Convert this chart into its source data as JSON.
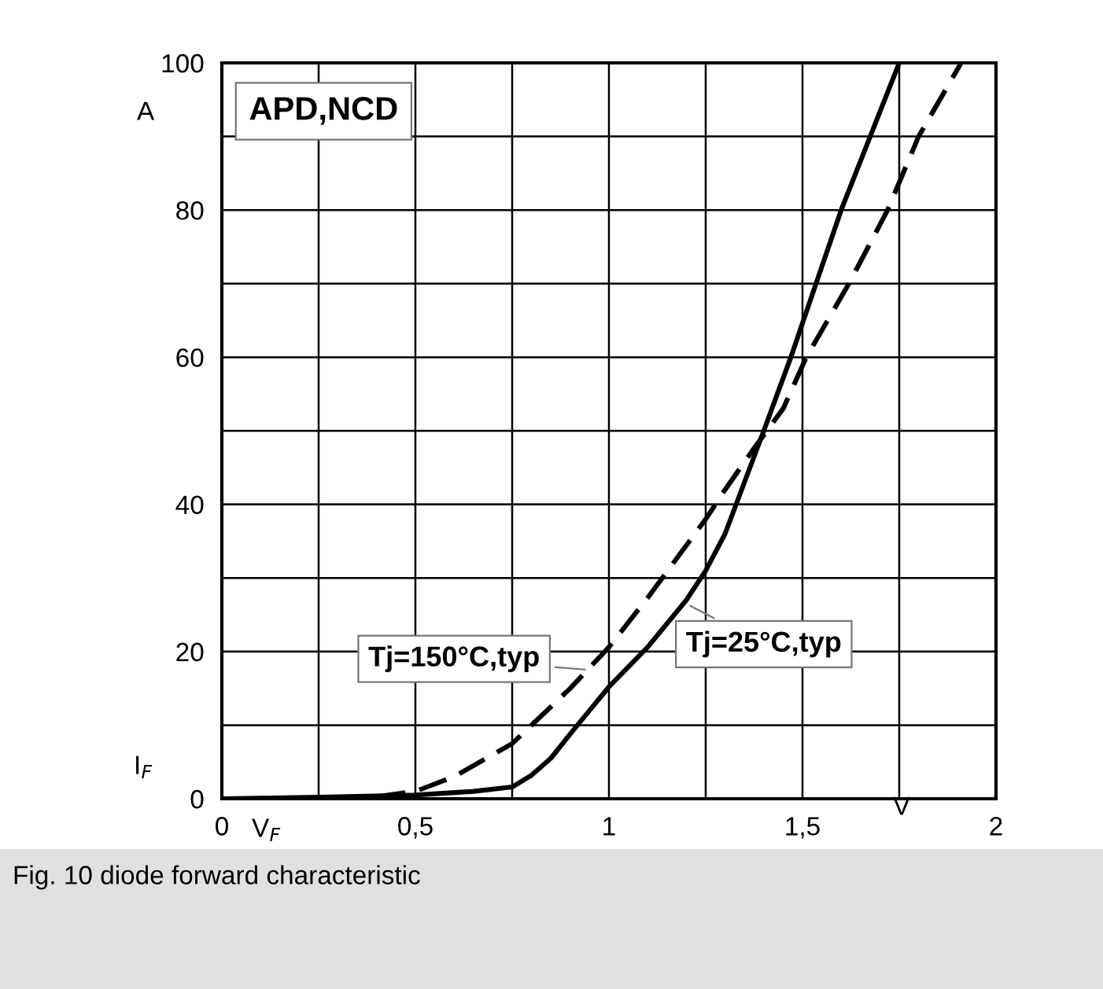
{
  "chart_data": {
    "type": "line",
    "xlabel": "V$_{F}$",
    "ylabel": "I$_{F}$",
    "annotations": [
      "APD,NCD",
      "A",
      "V",
      "Fig. 10 diode forward characteristic"
    ],
    "series": [
      {
        "name": "Tj=25°C,typ",
        "color": "#000000",
        "line_style": "solid",
        "x": [
          0,
          0.25,
          0.5,
          0.65,
          0.75,
          0.8,
          0.85,
          0.9,
          0.95,
          1.0,
          1.1,
          1.2,
          1.25,
          1.3,
          1.4,
          1.47,
          1.6,
          1.75
        ],
        "values": [
          0,
          0.2,
          0.5,
          1,
          1.6,
          3.2,
          5.5,
          8.8,
          12,
          15.2,
          20.6,
          27,
          31,
          36,
          50,
          60,
          80,
          100
        ]
      },
      {
        "name": "Tj=150°C,typ",
        "color": "#000000",
        "line_style": "dashed",
        "x": [
          0.4,
          0.5,
          0.6,
          0.75,
          0.9,
          1.0,
          1.1,
          1.25,
          1.3,
          1.38,
          1.45,
          1.51,
          1.62,
          1.72,
          1.8,
          1.91
        ],
        "values": [
          0.3,
          1,
          3,
          7.5,
          15,
          20.6,
          27.3,
          38,
          42,
          48,
          53,
          60,
          70,
          80,
          90,
          100
        ]
      }
    ],
    "xlim": [
      0,
      2
    ],
    "ylim": [
      0,
      100
    ],
    "xticks": [
      0,
      {
        "value": 0.25,
        "label": null
      },
      {
        "value": 0.5,
        "label": "0,5"
      },
      {
        "value": 0.75,
        "label": null
      },
      1,
      {
        "value": 1.25,
        "label": null
      },
      {
        "value": 1.5,
        "label": "1,5"
      },
      {
        "value": 1.75,
        "label": null
      },
      2
    ],
    "yticks": [
      0,
      {
        "value": 10,
        "label": null
      },
      20,
      {
        "value": 30,
        "label": null
      },
      40,
      {
        "value": 50,
        "label": null
      },
      60,
      {
        "value": 70,
        "label": null
      },
      80,
      {
        "value": 90,
        "label": null
      },
      100
    ],
    "grid": true,
    "legend": false
  }
}
